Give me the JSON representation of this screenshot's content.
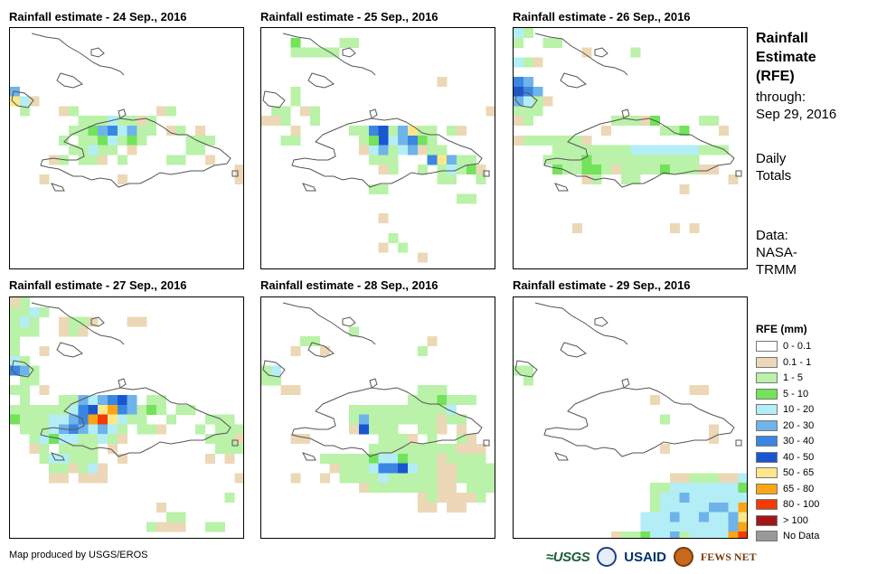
{
  "panels": [
    {
      "title": "Rainfall estimate - 24 Sep., 2016"
    },
    {
      "title": "Rainfall estimate - 25 Sep., 2016"
    },
    {
      "title": "Rainfall estimate - 26 Sep., 2016"
    },
    {
      "title": "Rainfall estimate - 27 Sep., 2016"
    },
    {
      "title": "Rainfall estimate - 28 Sep., 2016"
    },
    {
      "title": "Rainfall estimate - 29 Sep., 2016"
    }
  ],
  "side": {
    "title_line1": "Rainfall",
    "title_line2": "Estimate",
    "title_line3": "(RFE)",
    "through_label": "through:",
    "through_date": "Sep 29, 2016",
    "totals_line1": "Daily",
    "totals_line2": "Totals",
    "data_line1": "Data:",
    "data_line2": "NASA-",
    "data_line3": "TRMM"
  },
  "legend": {
    "title": "RFE (mm)",
    "items": [
      {
        "label": "0 - 0.1",
        "color": "#ffffff"
      },
      {
        "label": "0.1 - 1",
        "color": "#ecd8b6"
      },
      {
        "label": "1 - 5",
        "color": "#b9f2a8"
      },
      {
        "label": "5 - 10",
        "color": "#72e35a"
      },
      {
        "label": "10 - 20",
        "color": "#b3eef7"
      },
      {
        "label": "20 - 30",
        "color": "#6eb3ea"
      },
      {
        "label": "30 - 40",
        "color": "#3b86e0"
      },
      {
        "label": "40 - 50",
        "color": "#1956d2"
      },
      {
        "label": "50 - 65",
        "color": "#fde889"
      },
      {
        "label": "65 - 80",
        "color": "#fba514"
      },
      {
        "label": "80 - 100",
        "color": "#f23b05"
      },
      {
        "label": "> 100",
        "color": "#a11717"
      },
      {
        "label": "No Data",
        "color": "#999999"
      }
    ]
  },
  "footer": {
    "credit": "Map produced by USGS/EROS"
  },
  "logos": {
    "usgs": "≈USGS",
    "usaid": "USAID",
    "fews": "FEWS NET"
  }
}
